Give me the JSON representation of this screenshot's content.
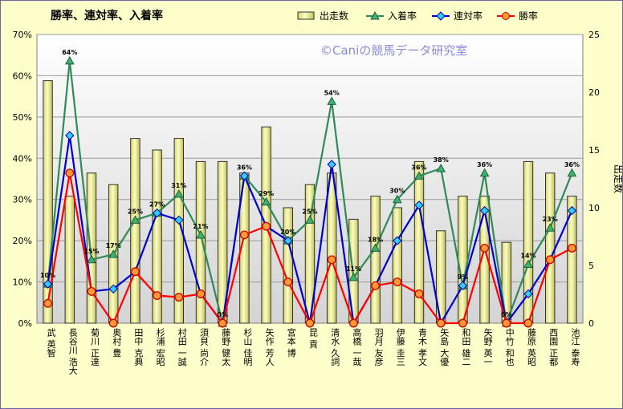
{
  "chart_data": {
    "type": "bar+line",
    "title": "勝率、連対率、入着率",
    "watermark": "©Caniの競馬データ研究室",
    "y_left": {
      "ticks": [
        "0%",
        "10%",
        "20%",
        "30%",
        "40%",
        "50%",
        "60%",
        "70%"
      ],
      "ylim": [
        0,
        70
      ]
    },
    "y_right": {
      "label": "出走数",
      "ticks": [
        "0",
        "5",
        "10",
        "15",
        "20",
        "25"
      ],
      "ylim": [
        0,
        25
      ]
    },
    "grid": true,
    "legend_position": "top",
    "categories": [
      "武 英智",
      "長谷川 浩大",
      "菊川 正達",
      "奥村 豊",
      "田中 克典",
      "杉浦 宏昭",
      "村田 一誠",
      "須貝 尚介",
      "藤野 健太",
      "杉山 佳明",
      "矢作 芳人",
      "宮本 博",
      "昆 貢",
      "清水 久詞",
      "高橋 一哉",
      "羽月 友彦",
      "伊藤 圭三",
      "青木 孝文",
      "矢島 大優",
      "和田 雄二",
      "矢野 英一",
      "中竹 和也",
      "藤原 英昭",
      "西園 正都",
      "池江 泰寿"
    ],
    "series": [
      {
        "name": "出走数",
        "axis": "right",
        "kind": "bar",
        "color": "#e6e68a",
        "values": [
          21,
          11,
          13,
          12,
          16,
          15,
          16,
          14,
          14,
          13,
          17,
          10,
          12,
          13,
          9,
          11,
          10,
          14,
          8,
          11,
          11,
          7,
          14,
          13,
          11
        ]
      },
      {
        "name": "入着率",
        "axis": "left",
        "kind": "line",
        "color": "#2e8b57",
        "values": [
          9.5,
          63.6,
          15.4,
          16.7,
          25.0,
          26.7,
          31.3,
          21.4,
          0,
          35.7,
          29.4,
          20.0,
          25.0,
          53.8,
          11.1,
          18.2,
          30.0,
          35.7,
          37.5,
          9.1,
          36.4,
          0,
          14.3,
          23.1,
          36.4
        ]
      },
      {
        "name": "連対率",
        "axis": "left",
        "kind": "line",
        "color": "#0000cc",
        "values": [
          9.5,
          45.5,
          7.7,
          8.3,
          12.5,
          26.7,
          25.0,
          7.1,
          0,
          35.7,
          23.5,
          20.0,
          0,
          38.5,
          0,
          9.1,
          20.0,
          28.6,
          0,
          9.1,
          27.3,
          0,
          7.1,
          15.4,
          27.3
        ]
      },
      {
        "name": "勝率",
        "axis": "left",
        "kind": "line",
        "color": "#ff0000",
        "values": [
          4.8,
          36.4,
          7.7,
          0,
          12.5,
          6.7,
          6.3,
          7.1,
          0,
          21.4,
          23.5,
          10.0,
          0,
          15.4,
          0,
          9.1,
          10.0,
          7.1,
          0,
          0,
          18.2,
          0,
          0,
          15.4,
          18.2
        ]
      }
    ],
    "data_labels": [
      "10%",
      "64%",
      "15%",
      "17%",
      "25%",
      "27%",
      "31%",
      "21%",
      "0%",
      "36%",
      "29%",
      "20%",
      "25%",
      "54%",
      "11%",
      "18%",
      "30%",
      "36%",
      "38%",
      "9%",
      "36%",
      "0%",
      "14%",
      "23%",
      "36%"
    ]
  }
}
